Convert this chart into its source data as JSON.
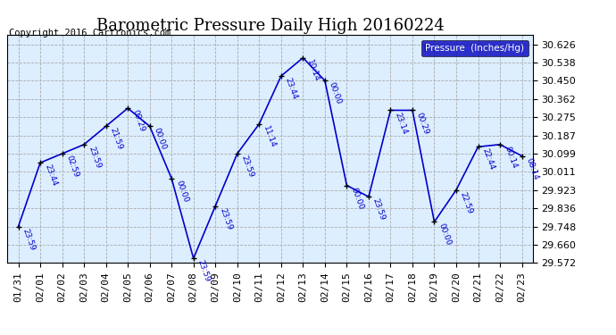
{
  "title": "Barometric Pressure Daily High 20160224",
  "copyright_text": "Copyright 2016 Cartronics.com",
  "legend_label": "Pressure  (Inches/Hg)",
  "x_labels": [
    "01/31",
    "02/01",
    "02/02",
    "02/03",
    "02/04",
    "02/05",
    "02/06",
    "02/07",
    "02/08",
    "02/09",
    "02/10",
    "02/11",
    "02/12",
    "02/13",
    "02/14",
    "02/15",
    "02/16",
    "02/17",
    "02/18",
    "02/19",
    "02/20",
    "02/21",
    "02/22",
    "02/23"
  ],
  "y_values": [
    29.748,
    30.055,
    30.099,
    30.143,
    30.231,
    30.318,
    30.231,
    29.979,
    29.594,
    29.847,
    30.099,
    30.242,
    30.473,
    30.561,
    30.451,
    29.946,
    29.891,
    30.308,
    30.308,
    29.77,
    29.924,
    30.132,
    30.143,
    30.088
  ],
  "time_labels": [
    "23:59",
    "23:44",
    "02:59",
    "23:59",
    "21:59",
    "09:29",
    "00:00",
    "00:00",
    "23:59",
    "23:59",
    "23:59",
    "11:14",
    "23:44",
    "10:14",
    "00:00",
    "00:00",
    "23:59",
    "23:14",
    "00:29",
    "00:00",
    "22:59",
    "22:44",
    "00:14",
    "08:14"
  ],
  "ylim_min": 29.572,
  "ylim_max": 30.67,
  "y_ticks": [
    29.572,
    29.66,
    29.748,
    29.836,
    29.923,
    30.011,
    30.099,
    30.187,
    30.275,
    30.362,
    30.45,
    30.538,
    30.626
  ],
  "line_color": "#0000cc",
  "marker_color": "#000000",
  "title_fontsize": 13,
  "copyright_fontsize": 7.5,
  "tick_fontsize": 8,
  "legend_bg": "#0000bb",
  "legend_fg": "#ffffff",
  "background_color": "#ffffff",
  "plot_bg_color": "#ddeeff",
  "grid_color": "#aaaaaa"
}
